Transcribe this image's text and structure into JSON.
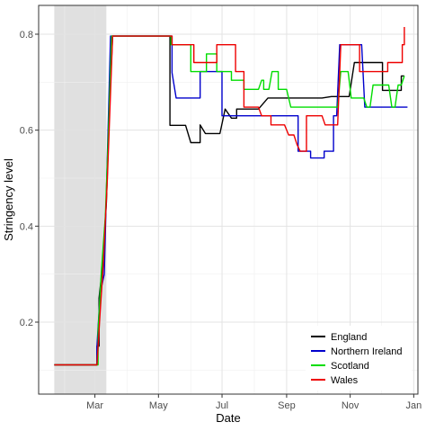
{
  "chart_data": {
    "type": "line",
    "title": "",
    "xlabel": "Date",
    "ylabel": "Stringency level",
    "x_ticks": [
      "Mar",
      "May",
      "Jul",
      "Sep",
      "Nov",
      "Jan"
    ],
    "y_ticks": [
      "0.2",
      "0.4",
      "0.6",
      "0.8"
    ],
    "ylim": [
      0.05,
      0.86
    ],
    "xlim": [
      "2020-01-07",
      "2021-01-05"
    ],
    "grid": true,
    "legend_position": "bottom-right",
    "shaded_region": {
      "start": "2020-01-22",
      "end": "2020-03-12",
      "color": "#e0e0e0"
    },
    "series": [
      {
        "name": "England",
        "color": "#000000",
        "points": [
          [
            "2020-01-22",
            0.111
          ],
          [
            "2020-03-01",
            0.111
          ],
          [
            "2020-03-03",
            0.15
          ],
          [
            "2020-03-05",
            0.25
          ],
          [
            "2020-03-08",
            0.31
          ],
          [
            "2020-03-12",
            0.45
          ],
          [
            "2020-03-15",
            0.65
          ],
          [
            "2020-03-18",
            0.796
          ],
          [
            "2020-05-11",
            0.796
          ],
          [
            "2020-05-12",
            0.61
          ],
          [
            "2020-05-27",
            0.61
          ],
          [
            "2020-06-01",
            0.574
          ],
          [
            "2020-06-08",
            0.574
          ],
          [
            "2020-06-10",
            0.611
          ],
          [
            "2020-06-15",
            0.593
          ],
          [
            "2020-06-29",
            0.593
          ],
          [
            "2020-07-04",
            0.644
          ],
          [
            "2020-07-10",
            0.625
          ],
          [
            "2020-07-13",
            0.625
          ],
          [
            "2020-07-15",
            0.644
          ],
          [
            "2020-08-05",
            0.644
          ],
          [
            "2020-08-14",
            0.667
          ],
          [
            "2020-09-14",
            0.667
          ],
          [
            "2020-09-20",
            0.667
          ],
          [
            "2020-10-05",
            0.667
          ],
          [
            "2020-10-14",
            0.67
          ],
          [
            "2020-10-31",
            0.67
          ],
          [
            "2020-11-05",
            0.741
          ],
          [
            "2020-12-02",
            0.741
          ],
          [
            "2020-12-02",
            0.683
          ],
          [
            "2020-12-19",
            0.683
          ],
          [
            "2020-12-20",
            0.713
          ],
          [
            "2020-12-23",
            0.713
          ]
        ]
      },
      {
        "name": "Northern Ireland",
        "color": "#0000cc",
        "points": [
          [
            "2020-01-22",
            0.111
          ],
          [
            "2020-03-01",
            0.111
          ],
          [
            "2020-03-03",
            0.15
          ],
          [
            "2020-03-06",
            0.26
          ],
          [
            "2020-03-10",
            0.3
          ],
          [
            "2020-03-13",
            0.55
          ],
          [
            "2020-03-16",
            0.796
          ],
          [
            "2020-05-11",
            0.796
          ],
          [
            "2020-05-14",
            0.72
          ],
          [
            "2020-05-18",
            0.667
          ],
          [
            "2020-06-08",
            0.667
          ],
          [
            "2020-06-10",
            0.722
          ],
          [
            "2020-06-29",
            0.722
          ],
          [
            "2020-07-01",
            0.63
          ],
          [
            "2020-08-10",
            0.63
          ],
          [
            "2020-08-20",
            0.63
          ],
          [
            "2020-09-10",
            0.63
          ],
          [
            "2020-09-12",
            0.556
          ],
          [
            "2020-09-22",
            0.556
          ],
          [
            "2020-09-24",
            0.542
          ],
          [
            "2020-10-05",
            0.542
          ],
          [
            "2020-10-07",
            0.556
          ],
          [
            "2020-10-14",
            0.556
          ],
          [
            "2020-10-16",
            0.63
          ],
          [
            "2020-10-19",
            0.63
          ],
          [
            "2020-10-22",
            0.778
          ],
          [
            "2020-11-12",
            0.778
          ],
          [
            "2020-11-15",
            0.648
          ],
          [
            "2020-12-26",
            0.648
          ]
        ]
      },
      {
        "name": "Scotland",
        "color": "#00dd00",
        "points": [
          [
            "2020-01-22",
            0.111
          ],
          [
            "2020-03-02",
            0.111
          ],
          [
            "2020-03-04",
            0.18
          ],
          [
            "2020-03-07",
            0.3
          ],
          [
            "2020-03-11",
            0.42
          ],
          [
            "2020-03-14",
            0.6
          ],
          [
            "2020-03-17",
            0.796
          ],
          [
            "2020-05-11",
            0.796
          ],
          [
            "2020-05-13",
            0.778
          ],
          [
            "2020-05-28",
            0.778
          ],
          [
            "2020-06-01",
            0.722
          ],
          [
            "2020-06-13",
            0.722
          ],
          [
            "2020-06-16",
            0.759
          ],
          [
            "2020-06-22",
            0.759
          ],
          [
            "2020-06-26",
            0.722
          ],
          [
            "2020-07-06",
            0.722
          ],
          [
            "2020-07-10",
            0.704
          ],
          [
            "2020-07-20",
            0.704
          ],
          [
            "2020-07-22",
            0.685
          ],
          [
            "2020-08-05",
            0.685
          ],
          [
            "2020-08-08",
            0.704
          ],
          [
            "2020-08-10",
            0.685
          ],
          [
            "2020-08-15",
            0.685
          ],
          [
            "2020-08-18",
            0.722
          ],
          [
            "2020-08-22",
            0.722
          ],
          [
            "2020-08-24",
            0.685
          ],
          [
            "2020-09-01",
            0.685
          ],
          [
            "2020-09-05",
            0.648
          ],
          [
            "2020-10-20",
            0.648
          ],
          [
            "2020-10-23",
            0.722
          ],
          [
            "2020-10-30",
            0.722
          ],
          [
            "2020-11-02",
            0.667
          ],
          [
            "2020-11-14",
            0.667
          ],
          [
            "2020-11-17",
            0.648
          ],
          [
            "2020-11-20",
            0.648
          ],
          [
            "2020-11-23",
            0.694
          ],
          [
            "2020-12-08",
            0.694
          ],
          [
            "2020-12-11",
            0.648
          ],
          [
            "2020-12-14",
            0.648
          ],
          [
            "2020-12-17",
            0.694
          ],
          [
            "2020-12-20",
            0.694
          ],
          [
            "2020-12-23",
            0.713
          ]
        ]
      },
      {
        "name": "Wales",
        "color": "#ee0000",
        "points": [
          [
            "2020-01-22",
            0.111
          ],
          [
            "2020-03-03",
            0.111
          ],
          [
            "2020-03-06",
            0.22
          ],
          [
            "2020-03-09",
            0.32
          ],
          [
            "2020-03-13",
            0.5
          ],
          [
            "2020-03-18",
            0.796
          ],
          [
            "2020-05-11",
            0.796
          ],
          [
            "2020-05-14",
            0.778
          ],
          [
            "2020-06-01",
            0.778
          ],
          [
            "2020-06-04",
            0.741
          ],
          [
            "2020-06-22",
            0.741
          ],
          [
            "2020-06-26",
            0.778
          ],
          [
            "2020-07-11",
            0.778
          ],
          [
            "2020-07-14",
            0.722
          ],
          [
            "2020-07-20",
            0.722
          ],
          [
            "2020-07-22",
            0.648
          ],
          [
            "2020-08-05",
            0.648
          ],
          [
            "2020-08-08",
            0.63
          ],
          [
            "2020-08-15",
            0.63
          ],
          [
            "2020-08-17",
            0.611
          ],
          [
            "2020-08-30",
            0.611
          ],
          [
            "2020-09-03",
            0.59
          ],
          [
            "2020-09-08",
            0.59
          ],
          [
            "2020-09-11",
            0.57
          ],
          [
            "2020-09-14",
            0.556
          ],
          [
            "2020-09-18",
            0.556
          ],
          [
            "2020-09-20",
            0.63
          ],
          [
            "2020-10-05",
            0.63
          ],
          [
            "2020-10-08",
            0.611
          ],
          [
            "2020-10-20",
            0.611
          ],
          [
            "2020-10-23",
            0.778
          ],
          [
            "2020-11-08",
            0.778
          ],
          [
            "2020-11-10",
            0.722
          ],
          [
            "2020-11-20",
            0.722
          ],
          [
            "2020-11-22",
            0.722
          ],
          [
            "2020-12-04",
            0.722
          ],
          [
            "2020-12-07",
            0.741
          ],
          [
            "2020-12-19",
            0.741
          ],
          [
            "2020-12-21",
            0.778
          ],
          [
            "2020-12-23",
            0.815
          ]
        ]
      }
    ]
  }
}
